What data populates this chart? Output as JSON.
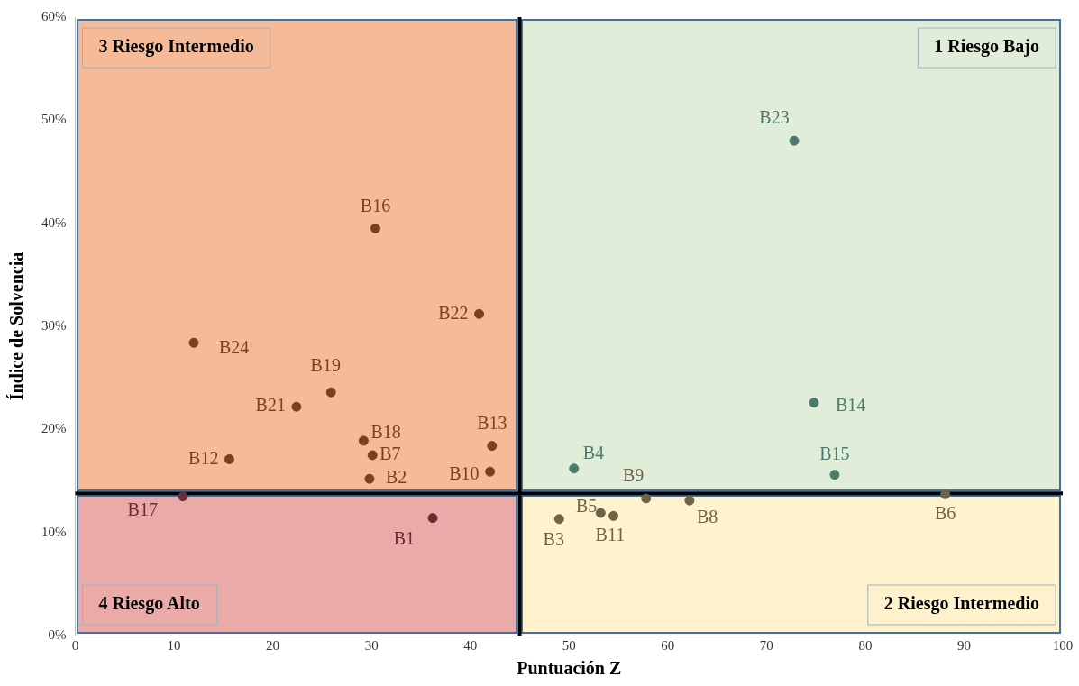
{
  "chart_data": {
    "type": "scatter",
    "xlabel": "Puntuación Z",
    "ylabel": "Índice de Solvencia",
    "xlim": [
      0,
      100
    ],
    "xticks": [
      0,
      10,
      20,
      30,
      40,
      50,
      60,
      70,
      80,
      90,
      100
    ],
    "ylim": [
      0,
      60
    ],
    "yticks": [
      {
        "value": 0,
        "label": "0%"
      },
      {
        "value": 10,
        "label": "10%"
      },
      {
        "value": 20,
        "label": "20%"
      },
      {
        "value": 30,
        "label": "30%"
      },
      {
        "value": 40,
        "label": "40%"
      },
      {
        "value": 50,
        "label": "50%"
      },
      {
        "value": 60,
        "label": "60%"
      }
    ],
    "grid": false,
    "legend": false,
    "marker": "circle",
    "series": [
      {
        "color": "#7a4020",
        "x": [
          30.4,
          40.9,
          12.0,
          25.9,
          22.4,
          29.2,
          30.1,
          42.2,
          15.6,
          29.8,
          42.0
        ],
        "values": [
          39.5,
          31.2,
          28.4,
          23.6,
          22.2,
          18.9,
          17.5,
          18.4,
          17.1,
          15.2,
          15.9
        ],
        "value_labels": [
          "B16",
          "B22",
          "B24",
          "B19",
          "B21",
          "B18",
          "B7",
          "B13",
          "B12",
          "B2",
          "B10"
        ]
      },
      {
        "color": "#4e7a6e",
        "x": [
          72.8,
          74.8,
          76.9,
          50.5
        ],
        "values": [
          48.0,
          22.6,
          15.6,
          16.2
        ],
        "value_labels": [
          "B23",
          "B14",
          "B15",
          "B4"
        ]
      },
      {
        "color": "#6e6448",
        "x": [
          57.8,
          62.2,
          53.2,
          54.5,
          49.0,
          88.1
        ],
        "values": [
          13.3,
          13.1,
          11.9,
          11.6,
          11.3,
          13.7
        ],
        "value_labels": [
          "B9",
          "B8",
          "B5",
          "B11",
          "B3",
          "B6"
        ]
      },
      {
        "color": "#6a2a38",
        "x": [
          10.9,
          36.2
        ],
        "values": [
          13.5,
          11.4
        ],
        "value_labels": [
          "B17",
          "B1"
        ]
      }
    ],
    "ref_lines": [
      {
        "axis": "x",
        "value": 45,
        "color": "#000000"
      },
      {
        "axis": "y",
        "value": 13.8,
        "color": "#000000"
      }
    ],
    "annotations": [
      "3 Riesgo Intermedio",
      "1 Riesgo Bajo",
      "4 Riesgo Alto",
      "2 Riesgo Intermedio"
    ]
  }
}
